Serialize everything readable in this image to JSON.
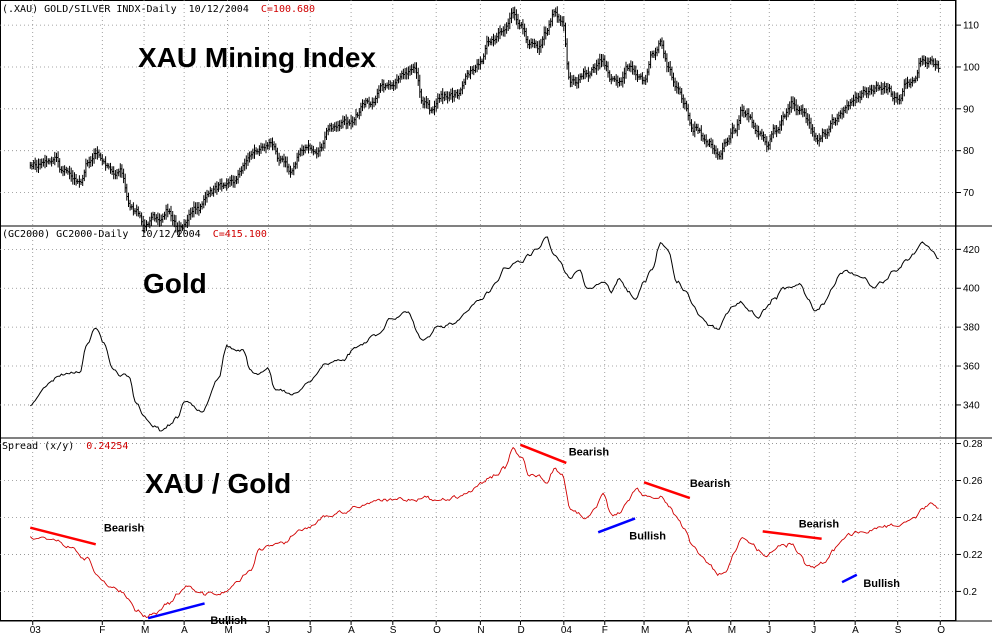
{
  "chart_data": [
    {
      "type": "bar",
      "panel": "xau",
      "header_symbol": "(.XAU) GOLD/SILVER INDX-Daily",
      "header_date": "10/12/2004",
      "header_close": "C=100.680",
      "title": "XAU Mining Index",
      "ylim": [
        62,
        116
      ],
      "yticks": [
        70,
        80,
        90,
        100,
        110
      ],
      "grid": true,
      "anchors": [
        [
          0,
          77
        ],
        [
          3,
          78
        ],
        [
          4,
          75
        ],
        [
          6,
          73
        ],
        [
          7,
          78
        ],
        [
          8,
          80
        ],
        [
          9,
          77
        ],
        [
          10,
          74
        ],
        [
          11,
          75
        ],
        [
          12,
          68
        ],
        [
          13,
          65
        ],
        [
          14,
          62
        ],
        [
          15,
          64
        ],
        [
          16,
          63
        ],
        [
          17,
          65
        ],
        [
          18,
          62
        ],
        [
          20,
          66
        ],
        [
          23,
          71
        ],
        [
          25,
          73
        ],
        [
          27,
          78
        ],
        [
          29,
          81
        ],
        [
          31,
          77
        ],
        [
          32,
          75
        ],
        [
          33,
          81
        ],
        [
          35,
          80
        ],
        [
          37,
          85
        ],
        [
          39,
          87
        ],
        [
          42,
          92
        ],
        [
          43,
          96
        ],
        [
          45,
          97
        ],
        [
          47,
          99
        ],
        [
          48,
          91
        ],
        [
          49,
          90
        ],
        [
          50,
          93
        ],
        [
          52,
          93
        ],
        [
          54,
          99
        ],
        [
          55,
          101
        ],
        [
          56,
          105
        ],
        [
          57,
          107
        ],
        [
          58,
          108
        ],
        [
          59,
          113
        ],
        [
          60,
          110
        ],
        [
          61,
          105
        ],
        [
          62,
          104
        ],
        [
          63,
          108
        ],
        [
          64,
          112
        ],
        [
          65,
          111
        ],
        [
          66,
          96
        ],
        [
          68,
          98
        ],
        [
          70,
          101
        ],
        [
          71,
          97
        ],
        [
          72,
          96
        ],
        [
          73,
          100
        ],
        [
          74,
          98
        ],
        [
          75,
          97
        ],
        [
          76,
          103
        ],
        [
          77,
          106
        ],
        [
          78,
          100
        ],
        [
          79,
          95
        ],
        [
          80,
          91
        ],
        [
          81,
          86
        ],
        [
          83,
          81
        ],
        [
          84,
          79
        ],
        [
          85,
          82
        ],
        [
          86,
          85
        ],
        [
          87,
          90
        ],
        [
          88,
          88
        ],
        [
          89,
          84
        ],
        [
          90,
          82
        ],
        [
          91,
          85
        ],
        [
          92,
          88
        ],
        [
          93,
          91
        ],
        [
          94,
          89
        ],
        [
          95,
          87
        ],
        [
          96,
          83
        ],
        [
          97,
          84
        ],
        [
          98,
          86
        ],
        [
          99,
          88
        ],
        [
          100,
          92
        ],
        [
          102,
          94
        ],
        [
          104,
          95
        ],
        [
          106,
          92
        ],
        [
          107,
          96
        ],
        [
          108,
          98
        ],
        [
          109,
          103
        ],
        [
          110,
          102
        ],
        [
          111,
          101
        ]
      ],
      "seed": 11,
      "noise": 1.3
    },
    {
      "type": "line",
      "panel": "gold",
      "header_symbol": "(GC2000) GC2000-Daily",
      "header_date": "10/12/2004",
      "header_close": "C=415.100",
      "title": "Gold",
      "ylim": [
        323,
        432
      ],
      "yticks": [
        340,
        360,
        380,
        400,
        420
      ],
      "grid": true,
      "anchors": [
        [
          0,
          340
        ],
        [
          2,
          351
        ],
        [
          4,
          356
        ],
        [
          6,
          358
        ],
        [
          7,
          372
        ],
        [
          8,
          380
        ],
        [
          9,
          372
        ],
        [
          10,
          360
        ],
        [
          11,
          356
        ],
        [
          12,
          355
        ],
        [
          13,
          340
        ],
        [
          14,
          333
        ],
        [
          15,
          330
        ],
        [
          16,
          327
        ],
        [
          17,
          330
        ],
        [
          18,
          334
        ],
        [
          19,
          342
        ],
        [
          21,
          338
        ],
        [
          23,
          354
        ],
        [
          24,
          370
        ],
        [
          25,
          367
        ],
        [
          26,
          368
        ],
        [
          27,
          357
        ],
        [
          28,
          356
        ],
        [
          29,
          360
        ],
        [
          30,
          348
        ],
        [
          32,
          345
        ],
        [
          34,
          352
        ],
        [
          36,
          361
        ],
        [
          38,
          363
        ],
        [
          40,
          370
        ],
        [
          42,
          376
        ],
        [
          43,
          378
        ],
        [
          44,
          385
        ],
        [
          46,
          388
        ],
        [
          48,
          372
        ],
        [
          50,
          380
        ],
        [
          52,
          383
        ],
        [
          54,
          391
        ],
        [
          55,
          393
        ],
        [
          56,
          398
        ],
        [
          57,
          403
        ],
        [
          58,
          410
        ],
        [
          60,
          413
        ],
        [
          61,
          417
        ],
        [
          62,
          421
        ],
        [
          63,
          426
        ],
        [
          64,
          418
        ],
        [
          66,
          405
        ],
        [
          67,
          410
        ],
        [
          68,
          400
        ],
        [
          70,
          403
        ],
        [
          71,
          398
        ],
        [
          72,
          405
        ],
        [
          73,
          398
        ],
        [
          74,
          395
        ],
        [
          75,
          403
        ],
        [
          76,
          410
        ],
        [
          77,
          423
        ],
        [
          78,
          418
        ],
        [
          79,
          404
        ],
        [
          80,
          398
        ],
        [
          81,
          392
        ],
        [
          82,
          385
        ],
        [
          83,
          380
        ],
        [
          84,
          378
        ],
        [
          85,
          386
        ],
        [
          86,
          390
        ],
        [
          87,
          392
        ],
        [
          88,
          388
        ],
        [
          89,
          385
        ],
        [
          90,
          390
        ],
        [
          91,
          395
        ],
        [
          92,
          399
        ],
        [
          93,
          400
        ],
        [
          94,
          402
        ],
        [
          95,
          395
        ],
        [
          96,
          389
        ],
        [
          97,
          393
        ],
        [
          98,
          400
        ],
        [
          99,
          407
        ],
        [
          100,
          408
        ],
        [
          102,
          405
        ],
        [
          103,
          400
        ],
        [
          104,
          403
        ],
        [
          106,
          410
        ],
        [
          107,
          415
        ],
        [
          108,
          418
        ],
        [
          109,
          423
        ],
        [
          110,
          420
        ],
        [
          111,
          415
        ]
      ],
      "seed": 23,
      "noise": 1.4
    },
    {
      "type": "line",
      "panel": "ratio",
      "header_label": "Spread (x/y)",
      "header_value": "0.24254",
      "title": "XAU / Gold",
      "ylim": [
        0.184,
        0.283
      ],
      "yticks": [
        0.2,
        0.22,
        0.24,
        0.26,
        0.28
      ],
      "ytick_labels": [
        "0.2",
        "0.22",
        "0.24",
        "0.26",
        "0.28"
      ],
      "grid": true,
      "anchors": [
        [
          0,
          0.23
        ],
        [
          3,
          0.229
        ],
        [
          5,
          0.224
        ],
        [
          7,
          0.218
        ],
        [
          8,
          0.211
        ],
        [
          9,
          0.206
        ],
        [
          10,
          0.202
        ],
        [
          11,
          0.199
        ],
        [
          12,
          0.195
        ],
        [
          13,
          0.19
        ],
        [
          14,
          0.187
        ],
        [
          15,
          0.188
        ],
        [
          17,
          0.194
        ],
        [
          18,
          0.198
        ],
        [
          19,
          0.203
        ],
        [
          21,
          0.198
        ],
        [
          23,
          0.199
        ],
        [
          24,
          0.2
        ],
        [
          25,
          0.204
        ],
        [
          27,
          0.212
        ],
        [
          28,
          0.222
        ],
        [
          29,
          0.224
        ],
        [
          31,
          0.226
        ],
        [
          33,
          0.234
        ],
        [
          34,
          0.235
        ],
        [
          36,
          0.24
        ],
        [
          38,
          0.242
        ],
        [
          40,
          0.246
        ],
        [
          42,
          0.248
        ],
        [
          44,
          0.249
        ],
        [
          46,
          0.25
        ],
        [
          48,
          0.251
        ],
        [
          50,
          0.249
        ],
        [
          52,
          0.252
        ],
        [
          54,
          0.255
        ],
        [
          55,
          0.258
        ],
        [
          56,
          0.262
        ],
        [
          57,
          0.264
        ],
        [
          58,
          0.267
        ],
        [
          59,
          0.278
        ],
        [
          60,
          0.273
        ],
        [
          61,
          0.263
        ],
        [
          62,
          0.262
        ],
        [
          63,
          0.258
        ],
        [
          64,
          0.266
        ],
        [
          65,
          0.262
        ],
        [
          66,
          0.245
        ],
        [
          68,
          0.24
        ],
        [
          69,
          0.244
        ],
        [
          70,
          0.252
        ],
        [
          71,
          0.24
        ],
        [
          72,
          0.242
        ],
        [
          73,
          0.25
        ],
        [
          74,
          0.255
        ],
        [
          75,
          0.252
        ],
        [
          76,
          0.251
        ],
        [
          77,
          0.252
        ],
        [
          78,
          0.246
        ],
        [
          79,
          0.24
        ],
        [
          80,
          0.232
        ],
        [
          81,
          0.224
        ],
        [
          82,
          0.219
        ],
        [
          83,
          0.213
        ],
        [
          84,
          0.209
        ],
        [
          85,
          0.211
        ],
        [
          86,
          0.22
        ],
        [
          87,
          0.23
        ],
        [
          88,
          0.228
        ],
        [
          89,
          0.222
        ],
        [
          90,
          0.22
        ],
        [
          91,
          0.222
        ],
        [
          92,
          0.225
        ],
        [
          93,
          0.226
        ],
        [
          94,
          0.219
        ],
        [
          95,
          0.213
        ],
        [
          96,
          0.212
        ],
        [
          97,
          0.215
        ],
        [
          98,
          0.222
        ],
        [
          99,
          0.226
        ],
        [
          100,
          0.231
        ],
        [
          102,
          0.233
        ],
        [
          104,
          0.235
        ],
        [
          106,
          0.236
        ],
        [
          107,
          0.239
        ],
        [
          108,
          0.241
        ],
        [
          109,
          0.245
        ],
        [
          110,
          0.247
        ],
        [
          111,
          0.244
        ]
      ],
      "seed": 37,
      "noise": 0.0016,
      "annotations": [
        {
          "label": "Bearish",
          "kind": "bearish",
          "x1": 0,
          "y1": 0.2345,
          "x2": 8,
          "y2": 0.2255,
          "tx": 9,
          "ty": 0.2325
        },
        {
          "label": "Bullish",
          "kind": "bullish",
          "x1": 14.4,
          "y1": 0.1855,
          "x2": 21.3,
          "y2": 0.1935,
          "tx": 22,
          "ty": 0.1825
        },
        {
          "label": "Bearish",
          "kind": "bearish",
          "x1": 59.9,
          "y1": 0.2793,
          "x2": 65.5,
          "y2": 0.2695,
          "tx": 65.8,
          "ty": 0.2735
        },
        {
          "label": "Bullish",
          "kind": "bullish",
          "x1": 69.4,
          "y1": 0.232,
          "x2": 73.9,
          "y2": 0.2395,
          "tx": 73.2,
          "ty": 0.2282
        },
        {
          "label": "Bearish",
          "kind": "bearish",
          "x1": 75,
          "y1": 0.259,
          "x2": 80.6,
          "y2": 0.2505,
          "tx": 80.6,
          "ty": 0.2565
        },
        {
          "label": "Bearish",
          "kind": "bearish",
          "x1": 89.5,
          "y1": 0.2325,
          "x2": 96.7,
          "y2": 0.2285,
          "tx": 93.9,
          "ty": 0.2345
        },
        {
          "label": "Bullish",
          "kind": "bullish",
          "x1": 99.2,
          "y1": 0.205,
          "x2": 101,
          "y2": 0.209,
          "tx": 101.8,
          "ty": 0.2025
        }
      ]
    }
  ],
  "x_axis": {
    "labels": [
      "03",
      "F",
      "M",
      "A",
      "M",
      "J",
      "J",
      "A",
      "S",
      "O",
      "N",
      "D",
      "04",
      "F",
      "M",
      "A",
      "M",
      "J",
      "J",
      "A",
      "S",
      "O"
    ],
    "positions": [
      0.3,
      8.8,
      13.9,
      18.8,
      24.1,
      29.1,
      34.2,
      39.2,
      44.3,
      49.6,
      55,
      59.9,
      65.2,
      70.2,
      75,
      80.4,
      85.6,
      90.3,
      95.8,
      100.8,
      106,
      111.2
    ],
    "span": [
      -3.7,
      113
    ]
  },
  "colors": {
    "price": "#000000",
    "ratio": "#d00000",
    "bearish": "#ff0000",
    "bullish": "#0000ff",
    "header_value": "#d00000",
    "grid": "#8a8a8a"
  }
}
